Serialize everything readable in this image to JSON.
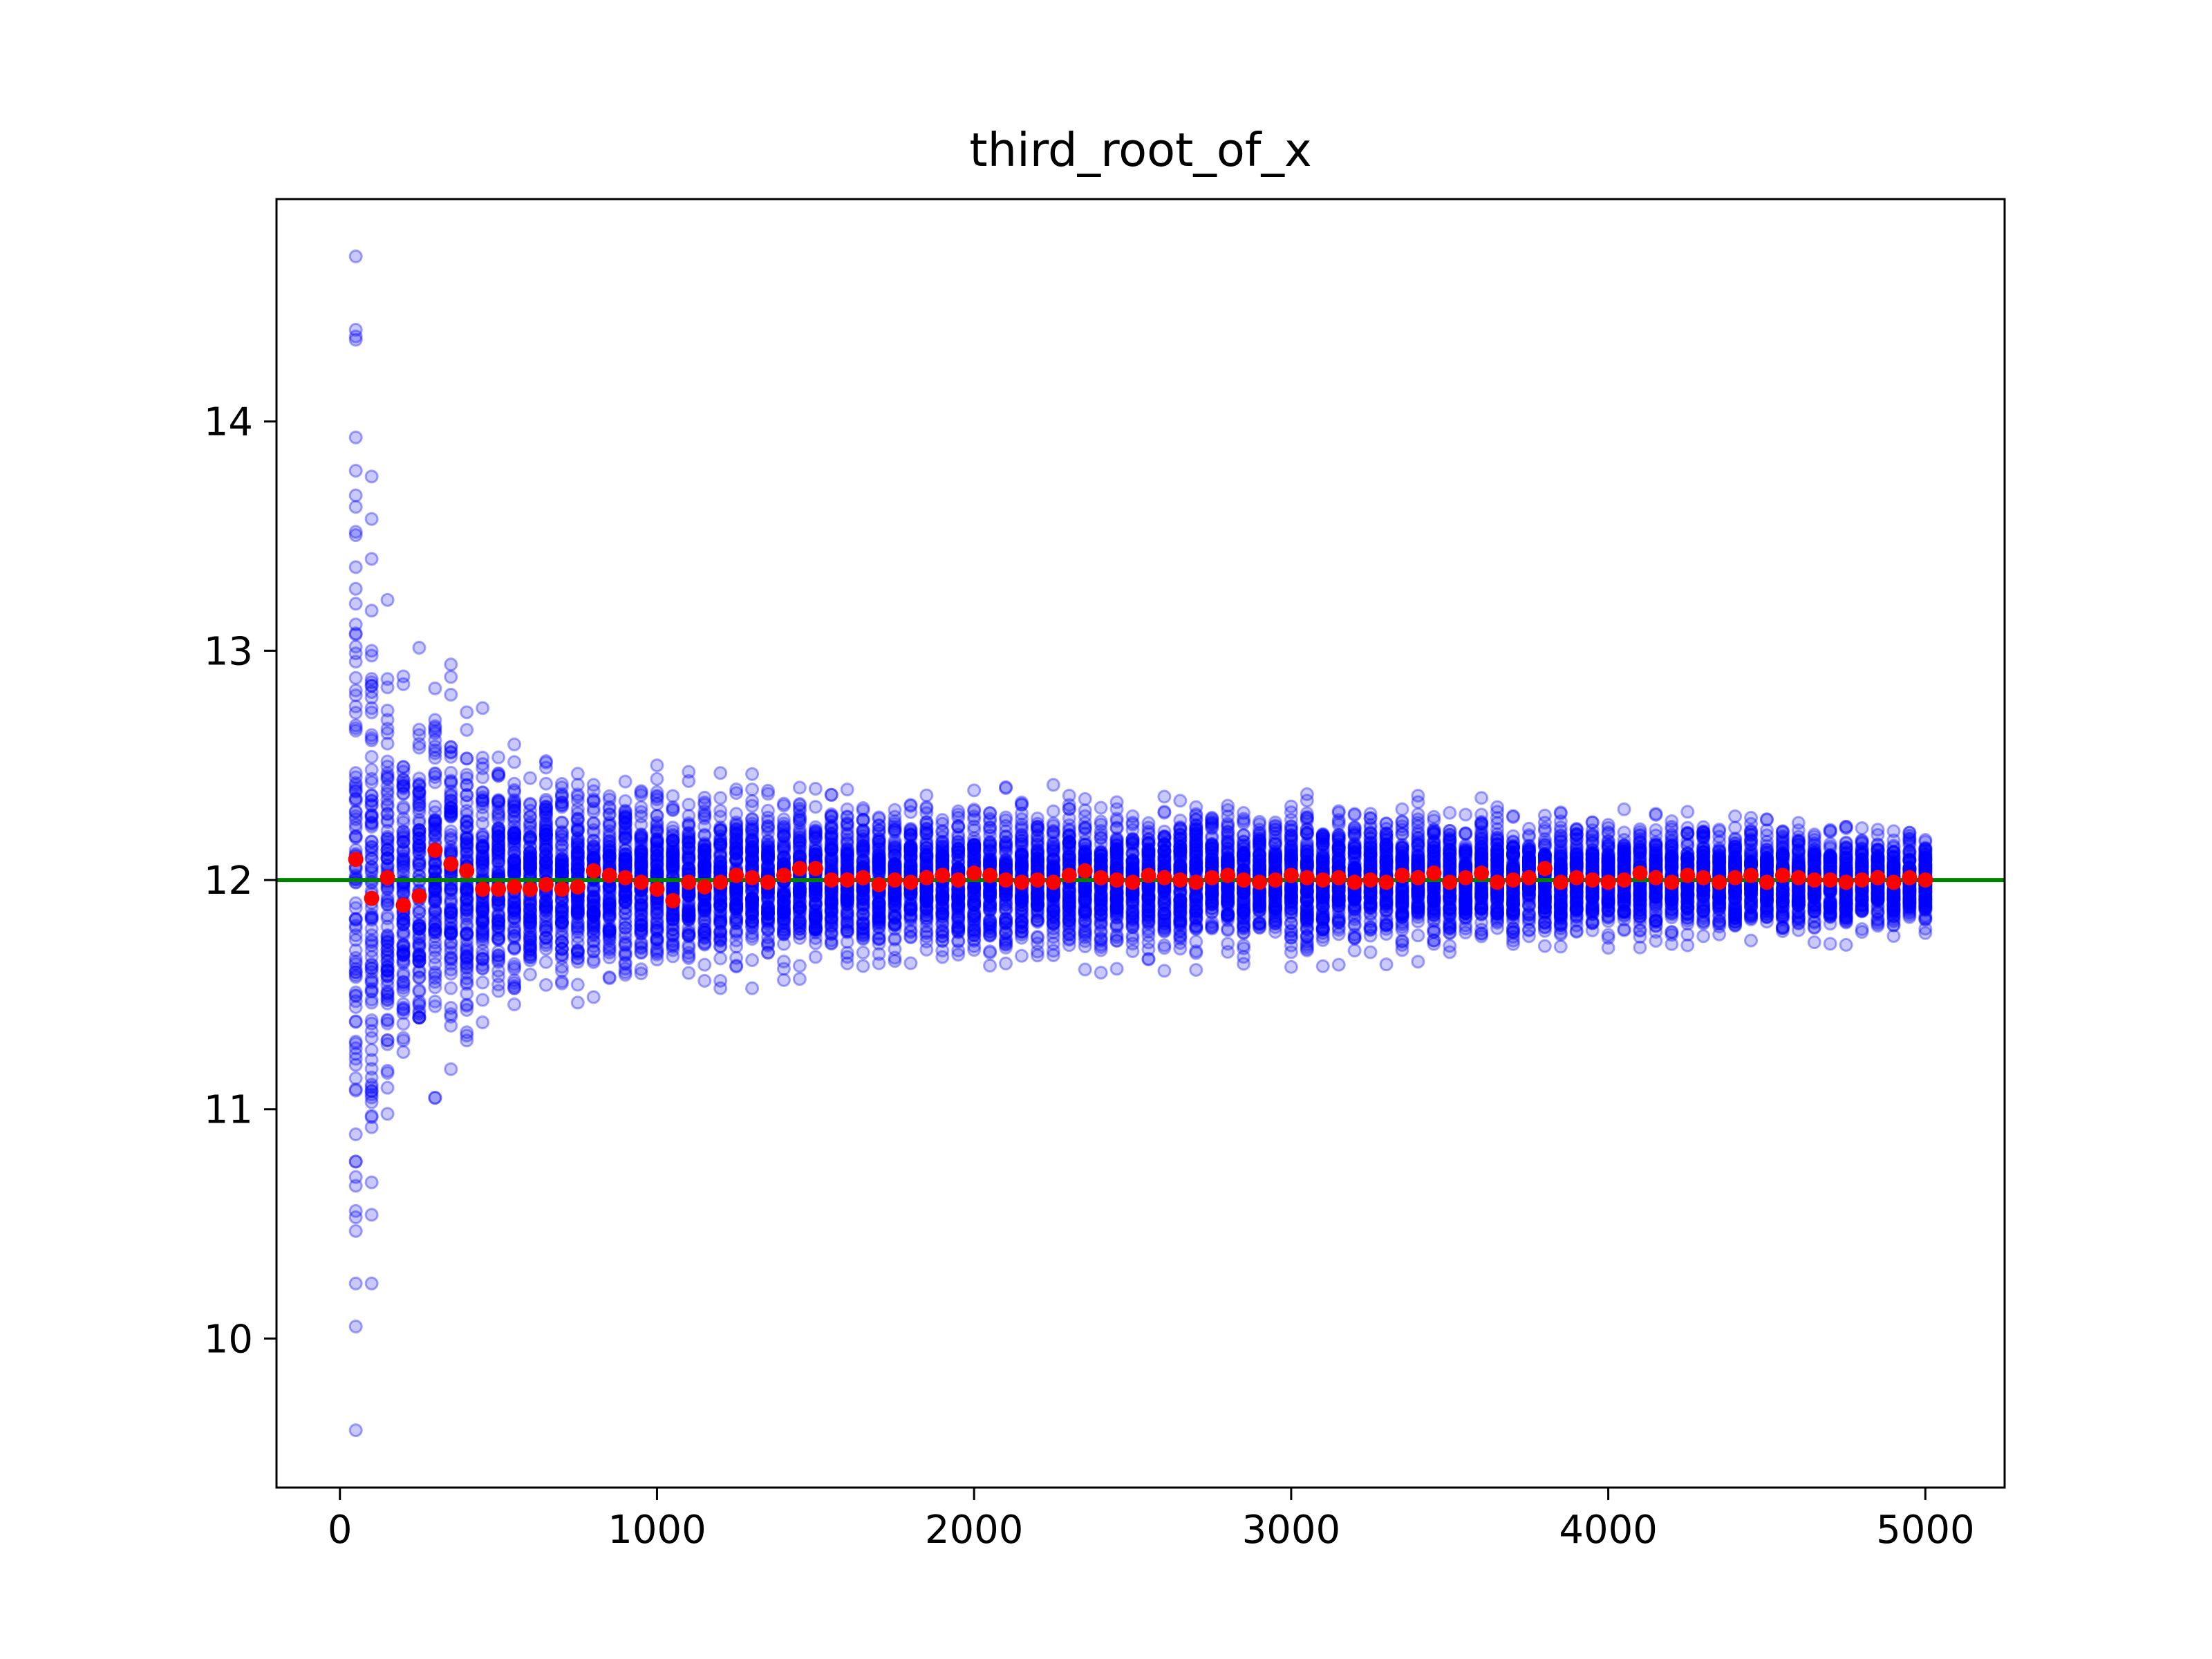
{
  "chart_data": {
    "type": "scatter",
    "title": "third_root_of_x",
    "xlabel": "",
    "ylabel": "",
    "xlim": [
      -200,
      5250
    ],
    "ylim": [
      9.35,
      14.97
    ],
    "x_ticks": [
      0,
      1000,
      2000,
      3000,
      4000,
      5000
    ],
    "x_tick_labels": [
      "0",
      "1000",
      "2000",
      "3000",
      "4000",
      "5000"
    ],
    "y_ticks": [
      10,
      11,
      12,
      13,
      14
    ],
    "y_tick_labels": [
      "10",
      "11",
      "12",
      "13",
      "14"
    ],
    "grid": false,
    "legend": "none",
    "reference_line": {
      "y": 12,
      "color": "#008000"
    },
    "sample_sizes": {
      "start": 50,
      "stop": 5000,
      "step": 50
    },
    "samples_per_size": 100,
    "spread": {
      "description": "spread of blue sample estimates around 12 by sample size",
      "x": [
        50,
        100,
        150,
        200,
        250,
        300,
        400,
        500,
        700,
        1000,
        1500,
        2000,
        3000,
        4000,
        5000
      ],
      "min": [
        9.6,
        10.24,
        10.98,
        10.88,
        11.4,
        11.05,
        11.3,
        11.3,
        11.4,
        11.48,
        11.56,
        11.58,
        11.62,
        11.66,
        11.72
      ],
      "max": [
        14.72,
        13.76,
        13.33,
        13.05,
        13.06,
        12.96,
        12.92,
        12.75,
        12.55,
        12.5,
        12.45,
        12.42,
        12.4,
        12.33,
        12.2
      ]
    },
    "series": [
      {
        "marker": "hollow circle",
        "color": "#0000ff",
        "opacity": 0.35,
        "values_from": "spread"
      },
      {
        "marker": "filled circle",
        "color": "#ff0000",
        "x": [
          50,
          100,
          150,
          200,
          250,
          300,
          350,
          400,
          450,
          500,
          550,
          600,
          650,
          700,
          750,
          800,
          850,
          900,
          950,
          1000,
          1050,
          1100,
          1150,
          1200,
          1250,
          1300,
          1350,
          1400,
          1450,
          1500,
          1550,
          1600,
          1650,
          1700,
          1750,
          1800,
          1850,
          1900,
          1950,
          2000,
          2050,
          2100,
          2150,
          2200,
          2250,
          2300,
          2350,
          2400,
          2450,
          2500,
          2550,
          2600,
          2650,
          2700,
          2750,
          2800,
          2850,
          2900,
          2950,
          3000,
          3050,
          3100,
          3150,
          3200,
          3250,
          3300,
          3350,
          3400,
          3450,
          3500,
          3550,
          3600,
          3650,
          3700,
          3750,
          3800,
          3850,
          3900,
          3950,
          4000,
          4050,
          4100,
          4150,
          4200,
          4250,
          4300,
          4350,
          4400,
          4450,
          4500,
          4550,
          4600,
          4650,
          4700,
          4750,
          4800,
          4850,
          4900,
          4950,
          5000
        ],
        "y": [
          12.09,
          11.92,
          12.01,
          11.89,
          11.93,
          12.13,
          12.07,
          12.04,
          11.96,
          11.96,
          11.97,
          11.96,
          11.98,
          11.96,
          11.97,
          12.04,
          12.02,
          12.01,
          11.99,
          11.96,
          11.91,
          11.99,
          11.97,
          11.99,
          12.02,
          12.01,
          11.99,
          12.02,
          12.05,
          12.05,
          12.0,
          12.0,
          12.01,
          11.98,
          12.0,
          11.99,
          12.01,
          12.02,
          12.0,
          12.03,
          12.02,
          12.0,
          11.99,
          12.0,
          11.99,
          12.02,
          12.04,
          12.01,
          12.0,
          11.99,
          12.02,
          12.01,
          12.0,
          11.99,
          12.01,
          12.02,
          12.0,
          11.99,
          12.0,
          12.02,
          12.01,
          12.0,
          12.01,
          11.99,
          12.0,
          11.99,
          12.02,
          12.01,
          12.03,
          11.99,
          12.01,
          12.03,
          11.99,
          12.0,
          12.01,
          12.05,
          11.99,
          12.01,
          12.0,
          11.99,
          12.0,
          12.03,
          12.01,
          11.99,
          12.02,
          12.01,
          11.99,
          12.01,
          12.02,
          11.99,
          12.02,
          12.01,
          12.0,
          12.0,
          11.99,
          12.0,
          12.01,
          11.99,
          12.01,
          12.0
        ]
      }
    ]
  }
}
